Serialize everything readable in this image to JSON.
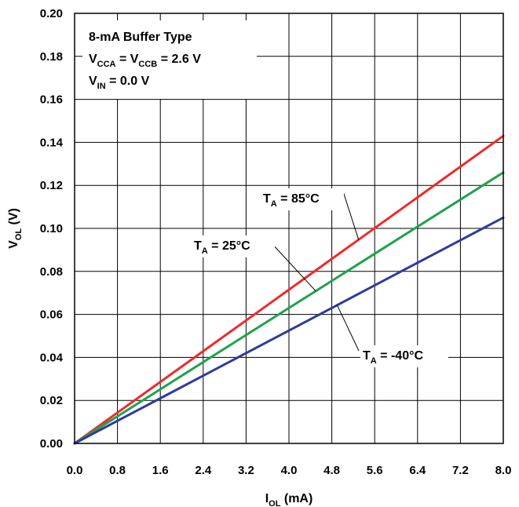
{
  "chart_data": {
    "type": "line",
    "xlabel": {
      "main": "I",
      "sub": "OL",
      "rest": " (mA)"
    },
    "ylabel": {
      "main": "V",
      "sub": "OL",
      "rest": " (V)"
    },
    "xlim": [
      0,
      8
    ],
    "ylim": [
      0,
      0.2
    ],
    "x_ticks": [
      "0.0",
      "0.8",
      "1.6",
      "2.4",
      "3.2",
      "4.0",
      "4.8",
      "5.6",
      "6.4",
      "7.2",
      "8.0"
    ],
    "y_ticks": [
      "0.00",
      "0.02",
      "0.04",
      "0.06",
      "0.08",
      "0.10",
      "0.12",
      "0.14",
      "0.16",
      "0.18",
      "0.20"
    ],
    "grid": true,
    "legend": "none",
    "conditions": [
      {
        "main": "8-mA Buffer Type"
      },
      {
        "main": "V",
        "sub": "CCA",
        "mid": " = V",
        "sub2": "CCB",
        "rest": " = 2.6 V"
      },
      {
        "main": "V",
        "sub": "IN",
        "rest": " = 0.0 V"
      }
    ],
    "series": [
      {
        "label": {
          "main": "T",
          "sub": "A",
          "rest": " = 85°C"
        },
        "color": "#ee2b2b",
        "x": [
          0,
          0.8,
          1.6,
          2.4,
          3.2,
          4.0,
          4.8,
          5.6,
          6.4,
          7.2,
          8.0
        ],
        "y": [
          0,
          0.0143,
          0.0286,
          0.0429,
          0.0572,
          0.0715,
          0.0858,
          0.1001,
          0.1144,
          0.1287,
          0.143
        ]
      },
      {
        "label": {
          "main": "T",
          "sub": "A",
          "rest": " = 25°C"
        },
        "color": "#1fa34a",
        "x": [
          0,
          0.8,
          1.6,
          2.4,
          3.2,
          4.0,
          4.8,
          5.6,
          6.4,
          7.2,
          8.0
        ],
        "y": [
          0,
          0.0126,
          0.0252,
          0.0378,
          0.0504,
          0.063,
          0.0756,
          0.0882,
          0.1008,
          0.1134,
          0.126
        ]
      },
      {
        "label": {
          "main": "T",
          "sub": "A",
          "rest": " = -40°C"
        },
        "color": "#2e3a9e",
        "x": [
          0,
          0.8,
          1.6,
          2.4,
          3.2,
          4.0,
          4.8,
          5.6,
          6.4,
          7.2,
          8.0
        ],
        "y": [
          0,
          0.0105,
          0.021,
          0.0315,
          0.042,
          0.0525,
          0.063,
          0.0735,
          0.084,
          0.0945,
          0.105
        ]
      }
    ]
  }
}
